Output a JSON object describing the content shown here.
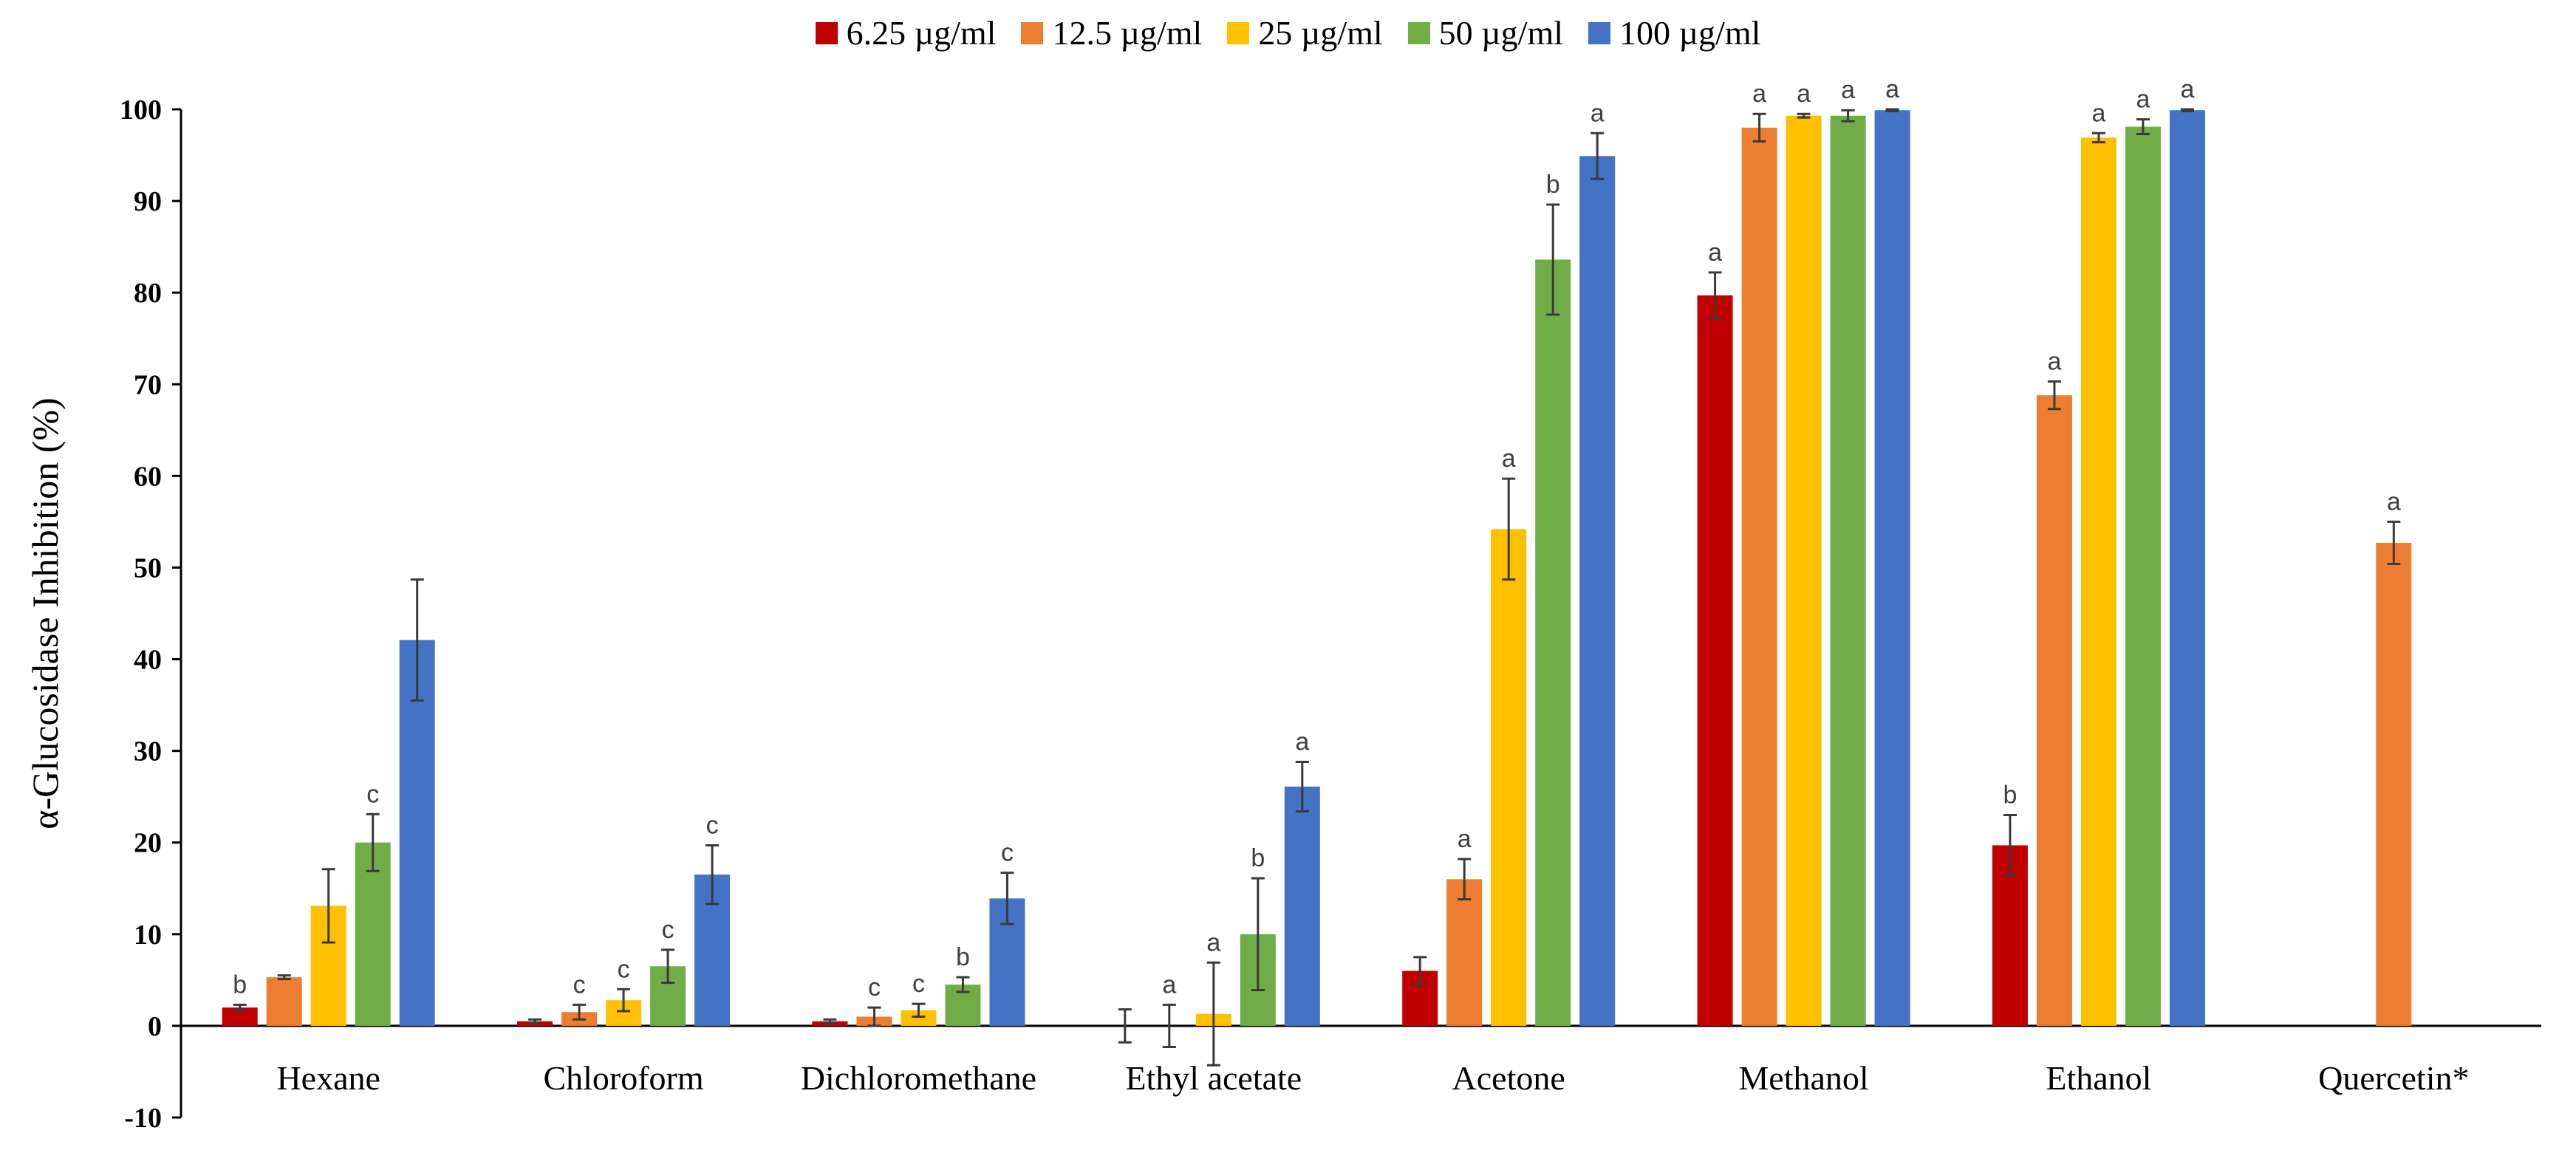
{
  "chart_data": {
    "type": "bar",
    "ylabel": "α-Glucosidase Inhibition (%)",
    "xlabel": "",
    "ylim": [
      -10,
      100
    ],
    "yticks": [
      "-10",
      "0",
      "10",
      "20",
      "30",
      "40",
      "50",
      "60",
      "70",
      "80",
      "90",
      "100"
    ],
    "legend_position": "top-center",
    "categories": [
      "Hexane",
      "Chloroform",
      "Dichloromethane",
      "Ethyl acetate",
      "Acetone",
      "Methanol",
      "Ethanol",
      "Quercetin*"
    ],
    "series": [
      {
        "name": "6.25 µg/ml",
        "color": "#C00000",
        "values": [
          2.0,
          0.5,
          0.5,
          0.0,
          6.0,
          79.7,
          19.7,
          null
        ],
        "errors": [
          0.3,
          0.2,
          0.2,
          1.8,
          1.5,
          2.5,
          3.3,
          null
        ],
        "letters": [
          "b",
          "",
          "",
          "",
          "",
          "a",
          "b",
          ""
        ]
      },
      {
        "name": "12.5 µg/ml",
        "color": "#ED7D31",
        "values": [
          5.3,
          1.5,
          1.0,
          0.0,
          16.0,
          98.0,
          68.8,
          52.7
        ],
        "errors": [
          0.2,
          0.8,
          1.0,
          2.3,
          2.2,
          1.5,
          1.5,
          2.3
        ],
        "letters": [
          "",
          "c",
          "c",
          "a",
          "a",
          "a",
          "a",
          "a"
        ]
      },
      {
        "name": "25 µg/ml",
        "color": "#FFC000",
        "values": [
          13.1,
          2.8,
          1.7,
          1.3,
          54.2,
          99.3,
          96.9,
          null
        ],
        "errors": [
          4.0,
          1.2,
          0.7,
          5.6,
          5.5,
          0.2,
          0.5,
          null
        ],
        "letters": [
          "",
          "c",
          "c",
          "a",
          "a",
          "a",
          "a",
          ""
        ]
      },
      {
        "name": "50 µg/ml",
        "color": "#70AD47",
        "values": [
          20.0,
          6.5,
          4.5,
          10.0,
          83.6,
          99.3,
          98.1,
          null
        ],
        "errors": [
          3.1,
          1.8,
          0.8,
          6.1,
          6.0,
          0.6,
          0.8,
          null
        ],
        "letters": [
          "c",
          "c",
          "b",
          "b",
          "b",
          "a",
          "a",
          ""
        ]
      },
      {
        "name": "100 µg/ml",
        "color": "#4472C4",
        "values": [
          42.1,
          16.5,
          13.9,
          26.1,
          94.9,
          99.9,
          99.9,
          null
        ],
        "errors": [
          6.6,
          3.2,
          2.8,
          2.7,
          2.5,
          0.1,
          0.1,
          null
        ],
        "letters": [
          "",
          "c",
          "c",
          "a",
          "a",
          "a",
          "a",
          ""
        ]
      }
    ]
  }
}
